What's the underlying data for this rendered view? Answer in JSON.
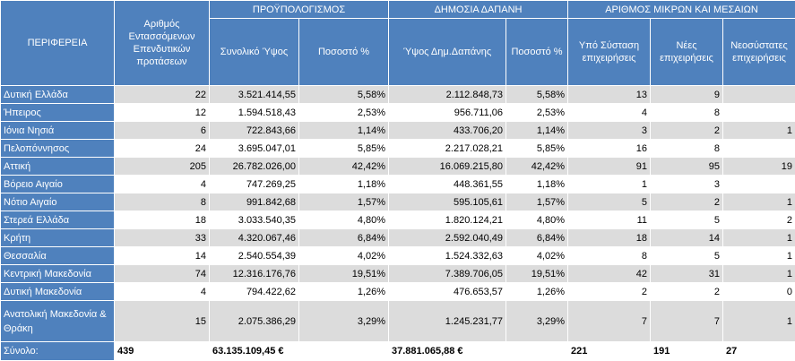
{
  "headers": {
    "region": "ΠΕΡΙΦΕΡΕΙΑ",
    "proposals": "Αριθμός Εντασσόμενων Επενδυτικών προτάσεων",
    "budget_group": "ΠΡΟΫΠΟΛΟΓΙΣΜΟΣ",
    "public_group": "ΔΗΜΟΣΙΑ ΔΑΠΑΝΗ",
    "sme_group": "ΑΡΙΘΜΟΣ ΜΙΚΡΩΝ ΚΑΙ ΜΕΣΑΙΩΝ",
    "total_budget": "Συνολικό Ύψος",
    "budget_pct": "Ποσοστό %",
    "public_amount": "Ύψος Δημ.Δαπάνης",
    "public_pct": "Ποσοστό %",
    "under_formation": "Υπό Σύσταση επιχειρήσεις",
    "new": "Νέες επιχειρήσεις",
    "newly_established": "Νεοσύστατες επιχειρήσεις"
  },
  "rows": [
    {
      "region": "Δυτική Ελλάδα",
      "proposals": "22",
      "budget": "3.521.414,55",
      "budget_pct": "5,58%",
      "public": "2.112.848,73",
      "public_pct": "5,58%",
      "under": "13",
      "new": "9",
      "newly": ""
    },
    {
      "region": "Ήπειρος",
      "proposals": "12",
      "budget": "1.594.518,43",
      "budget_pct": "2,53%",
      "public": "956.711,06",
      "public_pct": "2,53%",
      "under": "4",
      "new": "8",
      "newly": ""
    },
    {
      "region": "Ιόνια Νησιά",
      "proposals": "6",
      "budget": "722.843,66",
      "budget_pct": "1,14%",
      "public": "433.706,20",
      "public_pct": "1,14%",
      "under": "3",
      "new": "2",
      "newly": "1"
    },
    {
      "region": "Πελοπόννησος",
      "proposals": "24",
      "budget": "3.695.047,01",
      "budget_pct": "5,85%",
      "public": "2.217.028,21",
      "public_pct": "5,85%",
      "under": "16",
      "new": "8",
      "newly": ""
    },
    {
      "region": "Αττική",
      "proposals": "205",
      "budget": "26.782.026,00",
      "budget_pct": "42,42%",
      "public": "16.069.215,80",
      "public_pct": "42,42%",
      "under": "91",
      "new": "95",
      "newly": "19"
    },
    {
      "region": "Βόρειο Αιγαίο",
      "proposals": "4",
      "budget": "747.269,25",
      "budget_pct": "1,18%",
      "public": "448.361,55",
      "public_pct": "1,18%",
      "under": "1",
      "new": "3",
      "newly": ""
    },
    {
      "region": "Νότιο Αιγαίο",
      "proposals": "8",
      "budget": "991.842,68",
      "budget_pct": "1,57%",
      "public": "595.105,61",
      "public_pct": "1,57%",
      "under": "5",
      "new": "2",
      "newly": "1"
    },
    {
      "region": "Στερεά Ελλάδα",
      "proposals": "18",
      "budget": "3.033.540,35",
      "budget_pct": "4,80%",
      "public": "1.820.124,21",
      "public_pct": "4,80%",
      "under": "11",
      "new": "5",
      "newly": "2"
    },
    {
      "region": "Κρήτη",
      "proposals": "33",
      "budget": "4.320.067,46",
      "budget_pct": "6,84%",
      "public": "2.592.040,49",
      "public_pct": "6,84%",
      "under": "18",
      "new": "14",
      "newly": "1"
    },
    {
      "region": "Θεσσαλία",
      "proposals": "14",
      "budget": "2.540.554,39",
      "budget_pct": "4,02%",
      "public": "1.524.332,63",
      "public_pct": "4,02%",
      "under": "8",
      "new": "5",
      "newly": "1"
    },
    {
      "region": "Κεντρική Μακεδονία",
      "proposals": "74",
      "budget": "12.316.176,76",
      "budget_pct": "19,51%",
      "public": "7.389.706,05",
      "public_pct": "19,51%",
      "under": "42",
      "new": "31",
      "newly": "1"
    },
    {
      "region": "Δυτική Μακεδονία",
      "proposals": "4",
      "budget": "794.422,62",
      "budget_pct": "1,26%",
      "public": "476.653,57",
      "public_pct": "1,26%",
      "under": "2",
      "new": "2",
      "newly": "0"
    },
    {
      "region": "Ανατολική Μακεδονία & Θράκη",
      "proposals": "15",
      "budget": "2.075.386,29",
      "budget_pct": "3,29%",
      "public": "1.245.231,77",
      "public_pct": "3,29%",
      "under": "7",
      "new": "7",
      "newly": "1"
    }
  ],
  "total": {
    "label": "Σύνολο:",
    "proposals": "439",
    "budget": "63.135.109,45 €",
    "budget_pct": "",
    "public": "37.881.065,88 €",
    "public_pct": "",
    "under": "221",
    "new": "191",
    "newly": "27"
  }
}
